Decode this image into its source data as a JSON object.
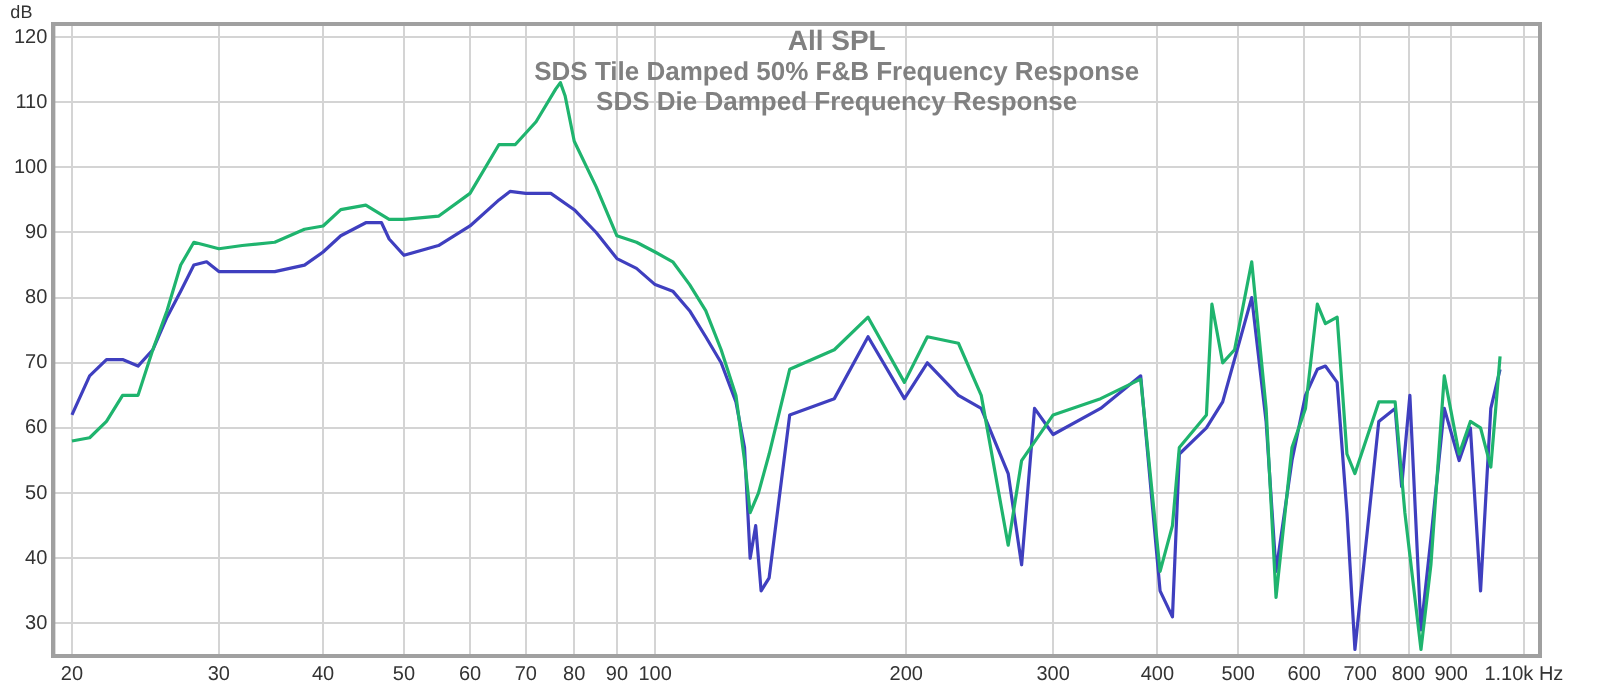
{
  "chart_data": {
    "type": "line",
    "title": "All SPL",
    "annotations": [
      "SDS Tile Damped 50% F&B Frequency Response",
      "SDS Die Damped Frequency Response"
    ],
    "ylabel": "dB",
    "log": "x",
    "grid": true,
    "legend": false,
    "marker": "none",
    "line_style": "solid",
    "xlim": [
      19,
      1150
    ],
    "xticks": [
      20,
      30,
      40,
      50,
      60,
      70,
      80,
      90,
      100,
      200,
      300,
      400,
      500,
      600,
      700,
      800,
      900,
      {
        "value": 1100,
        "label": "1.10k Hz"
      }
    ],
    "ylim": [
      25,
      122
    ],
    "yticks": [
      30,
      40,
      50,
      60,
      70,
      80,
      90,
      100,
      110,
      120
    ],
    "series": [
      {
        "color": "#1fb46e",
        "x": [
          20,
          21,
          22,
          23,
          24,
          25,
          26,
          27,
          28,
          29,
          30,
          32,
          35,
          38,
          40,
          42,
          45,
          48,
          50,
          55,
          60,
          65,
          68,
          72,
          76,
          77,
          78,
          80,
          85,
          90,
          95,
          100,
          105,
          110,
          115,
          120,
          125,
          128,
          130,
          133,
          137,
          145,
          164,
          180,
          199,
          212,
          231,
          246,
          265,
          275,
          300,
          342,
          382,
          403,
          417,
          425,
          458,
          465,
          479,
          495,
          519,
          540,
          555,
          580,
          602,
          622,
          636,
          657,
          675,
          690,
          737,
          771,
          792,
          828,
          851,
          883,
          920,
          949,
          976,
          1004,
          1030
        ],
        "values": [
          58,
          58.5,
          61,
          65,
          65,
          72,
          78,
          85,
          88.5,
          88,
          87.5,
          88,
          88.5,
          90.5,
          91,
          93.5,
          94.2,
          92,
          92,
          92.5,
          96,
          103.5,
          103.5,
          107,
          112,
          113,
          111,
          104,
          97,
          89.5,
          88.5,
          87,
          85.5,
          82,
          78,
          72,
          65,
          55,
          47,
          50,
          56,
          69,
          72,
          77,
          67,
          74,
          73,
          65,
          42,
          55,
          62,
          64.5,
          67.5,
          38,
          45,
          57,
          62,
          79,
          70,
          72,
          85.5,
          63,
          34,
          57,
          63,
          79,
          76,
          77,
          56,
          53,
          64,
          64,
          47,
          26,
          39,
          68,
          56,
          61,
          60,
          54,
          71
        ]
      },
      {
        "color": "#3f3fbf",
        "x": [
          20,
          21,
          22,
          23,
          24,
          25,
          26,
          27,
          28,
          29,
          30,
          32,
          35,
          38,
          40,
          42,
          45,
          47,
          48,
          50,
          55,
          60,
          65,
          67,
          70,
          75,
          80,
          85,
          90,
          95,
          100,
          105,
          110,
          115,
          120,
          125,
          128,
          130,
          132,
          134,
          137,
          145,
          164,
          180,
          199,
          212,
          231,
          246,
          265,
          275,
          285,
          300,
          342,
          382,
          403,
          417,
          425,
          458,
          479,
          519,
          540,
          555,
          580,
          602,
          622,
          636,
          657,
          675,
          690,
          737,
          771,
          785,
          803,
          828,
          851,
          883,
          920,
          949,
          976,
          1004,
          1030
        ],
        "values": [
          62,
          68,
          70.5,
          70.5,
          69.5,
          72,
          77,
          81,
          85,
          85.5,
          84,
          84,
          84,
          85,
          87,
          89.5,
          91.5,
          91.5,
          89,
          86.5,
          88,
          91,
          95,
          96.3,
          96,
          96,
          93.5,
          90,
          86,
          84.5,
          82,
          81,
          78,
          74,
          70,
          64,
          57,
          40,
          45,
          35,
          37,
          62,
          64.5,
          74,
          64.5,
          70,
          65,
          63,
          53,
          39,
          63,
          59,
          63,
          68,
          35,
          31,
          56,
          60,
          64,
          80,
          61,
          38,
          55,
          65,
          69,
          69.5,
          67,
          47,
          26,
          61,
          63,
          51,
          65,
          29,
          43,
          63,
          55,
          60,
          35,
          63,
          69
        ]
      }
    ]
  }
}
